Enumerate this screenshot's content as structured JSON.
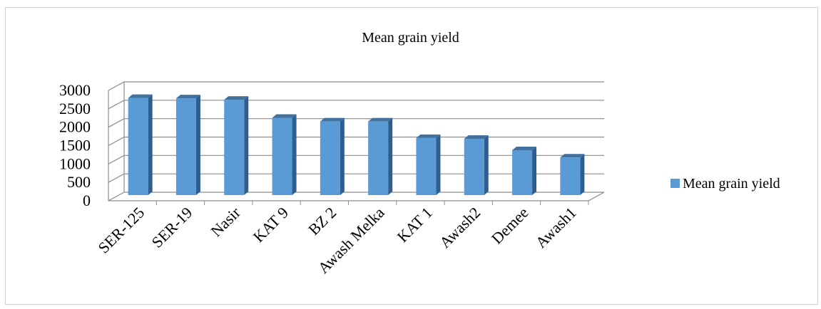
{
  "chart_data": {
    "type": "bar",
    "title": "Mean grain yield",
    "categories": [
      "SER-125",
      "SER-19",
      "Nasir",
      "KAT 9",
      "BZ 2",
      "Awash Melka",
      "KAT 1",
      "Awash2",
      "Demee",
      "Awash1"
    ],
    "series": [
      {
        "name": "Mean grain yield",
        "values": [
          2640,
          2630,
          2590,
          2100,
          2000,
          2000,
          1550,
          1530,
          1220,
          1020
        ]
      }
    ],
    "yticks": [
      0,
      500,
      1000,
      1500,
      2000,
      2500,
      3000
    ],
    "ylim": [
      0,
      3000
    ],
    "xlabel": "",
    "ylabel": "",
    "grid": true,
    "legend_position": "right",
    "style": "3d-column"
  },
  "colors": {
    "bar_front": "#5b9bd5",
    "bar_side": "#2e5e8f",
    "bar_top": "#41719c",
    "grid": "#8c8c8c"
  }
}
